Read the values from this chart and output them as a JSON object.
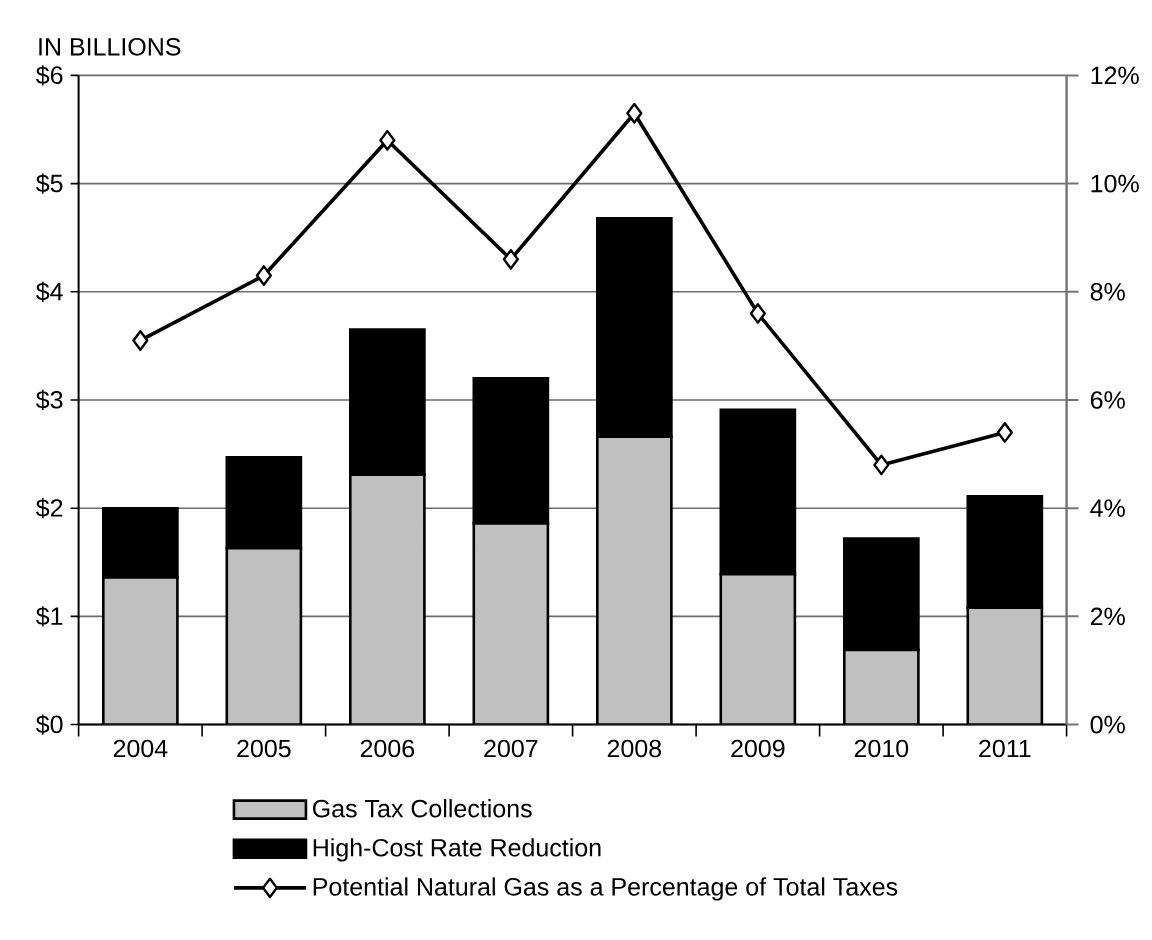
{
  "chart_data": {
    "type": "bar",
    "stacked": true,
    "ylabel": "IN BILLIONS",
    "categories": [
      "2004",
      "2005",
      "2006",
      "2007",
      "2008",
      "2009",
      "2010",
      "2011"
    ],
    "series": [
      {
        "name": "Gas Tax Collections",
        "color": "#c0c0c0",
        "values": [
          1.36,
          1.63,
          2.31,
          1.86,
          2.66,
          1.39,
          0.69,
          1.08
        ]
      },
      {
        "name": "High-Cost Rate Reduction",
        "color": "#000000",
        "values": [
          0.64,
          0.84,
          1.34,
          1.34,
          2.02,
          1.52,
          1.03,
          1.03
        ]
      },
      {
        "name": "Potential Natural Gas as a Percentage of Total Taxes",
        "type": "line",
        "axis": "y2",
        "color": "#000000",
        "marker": "diamond",
        "line_style": "solid",
        "values": [
          7.1,
          8.3,
          10.8,
          8.6,
          11.3,
          7.6,
          4.8,
          5.4
        ]
      }
    ],
    "ylim": [
      0,
      6
    ],
    "yticks": [
      {
        "value": 0,
        "label": "$0"
      },
      {
        "value": 1,
        "label": "$1"
      },
      {
        "value": 2,
        "label": "$2"
      },
      {
        "value": 3,
        "label": "$3"
      },
      {
        "value": 4,
        "label": "$4"
      },
      {
        "value": 5,
        "label": "$5"
      },
      {
        "value": 6,
        "label": "$6"
      }
    ],
    "y2lim": [
      0,
      12
    ],
    "y2ticks": [
      {
        "value": 0,
        "label": "0%"
      },
      {
        "value": 2,
        "label": "2%"
      },
      {
        "value": 4,
        "label": "4%"
      },
      {
        "value": 6,
        "label": "6%"
      },
      {
        "value": 8,
        "label": "8%"
      },
      {
        "value": 10,
        "label": "10%"
      },
      {
        "value": 12,
        "label": "12%"
      }
    ],
    "grid": "y",
    "legend": "bottom"
  }
}
